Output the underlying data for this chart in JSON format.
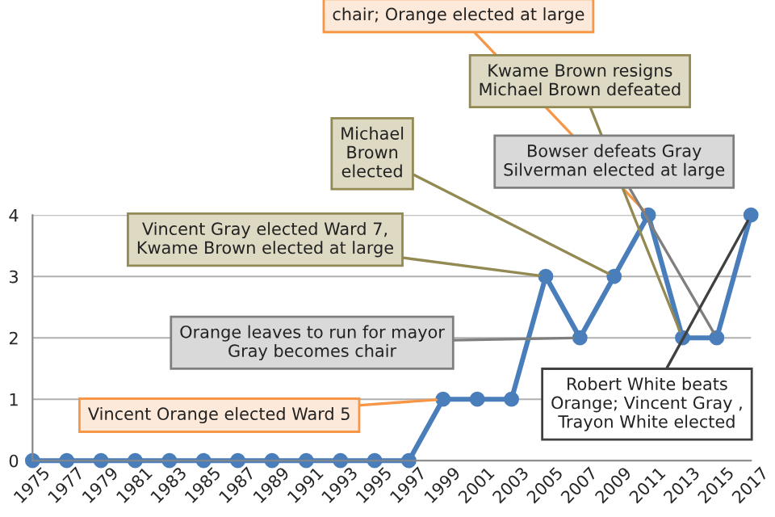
{
  "chart_data": {
    "type": "line",
    "categories": [
      "1975",
      "1977",
      "1979",
      "1981",
      "1983",
      "1985",
      "1987",
      "1989",
      "1991",
      "1993",
      "1995",
      "1997",
      "1999",
      "2001",
      "2003",
      "2005",
      "2007",
      "2009",
      "2011",
      "2013",
      "2015",
      "2017"
    ],
    "series": [
      {
        "color": "#4a7ebb",
        "values": [
          0,
          0,
          0,
          0,
          0,
          0,
          0,
          0,
          0,
          0,
          0,
          0,
          1,
          1,
          1,
          3,
          2,
          3,
          4,
          2,
          2,
          4
        ]
      }
    ],
    "ylim": [
      0,
      4
    ],
    "yticks": [
      0,
      1,
      2,
      3,
      4
    ],
    "grid": "y",
    "marker": "circle",
    "line_style": "solid",
    "annotations": [
      {
        "text": "chair; Orange elected at large",
        "x": "2011",
        "y": 4
      },
      {
        "text": "Kwame Brown resigns\nMichael Brown defeated",
        "x": "2013",
        "y": 2
      },
      {
        "text": "Michael\nBrown\nelected",
        "x": "2009",
        "y": 3
      },
      {
        "text": "Bowser defeats Gray\nSilverman elected at large",
        "x": "2015",
        "y": 2
      },
      {
        "text": "Vincent Gray elected Ward 7,\nKwame Brown elected at large",
        "x": "2005",
        "y": 3
      },
      {
        "text": "Orange leaves to run for mayor\nGray becomes chair",
        "x": "2007",
        "y": 2
      },
      {
        "text": "Vincent Orange elected Ward 5",
        "x": "1999",
        "y": 1
      },
      {
        "text": "Robert White beats\nOrange; Vincent Gray ,\nTrayon White elected",
        "x": "2017",
        "y": 4
      }
    ]
  }
}
